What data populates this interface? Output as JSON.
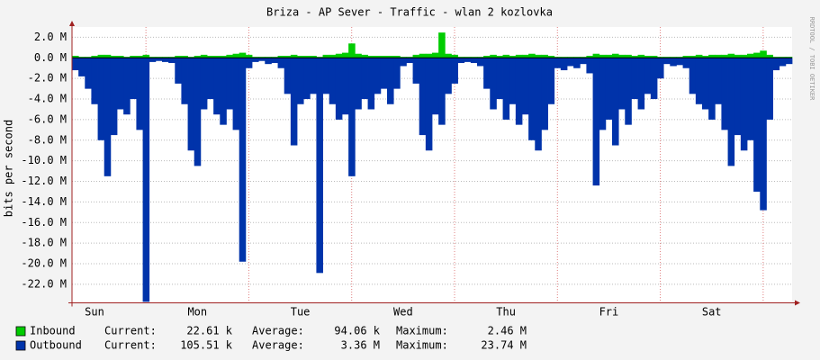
{
  "chart_data": {
    "type": "area",
    "title": "Briza - AP Sever - Traffic - wlan 2 kozlovka",
    "y_label": "bits per second",
    "watermark": "RRDTOOL / TOBI OETIKER",
    "stat_labels": [
      "Current:",
      "Average:",
      "Maximum:"
    ],
    "grid": true,
    "ylim": [
      -23.8,
      3.0
    ],
    "yticks": [
      {
        "value": 2,
        "label": "2.0 M"
      },
      {
        "value": 0,
        "label": "0.0 M"
      },
      {
        "value": -2,
        "label": "-2.0 M"
      },
      {
        "value": -4,
        "label": "-4.0 M"
      },
      {
        "value": -6,
        "label": "-6.0 M"
      },
      {
        "value": -8,
        "label": "-8.0 M"
      },
      {
        "value": -10,
        "label": "-10.0 M"
      },
      {
        "value": -12,
        "label": "-12.0 M"
      },
      {
        "value": -14,
        "label": "-14.0 M"
      },
      {
        "value": -16,
        "label": "-16.0 M"
      },
      {
        "value": -18,
        "label": "-18.0 M"
      },
      {
        "value": -20,
        "label": "-20.0 M"
      },
      {
        "value": -22,
        "label": "-22.0 M"
      }
    ],
    "categories": [
      null,
      null,
      null,
      "Sun",
      null,
      null,
      null,
      null,
      null,
      null,
      null,
      null,
      null,
      null,
      null,
      null,
      null,
      null,
      null,
      "Mon",
      null,
      null,
      null,
      null,
      null,
      null,
      null,
      null,
      null,
      null,
      null,
      null,
      null,
      null,
      null,
      "Tue",
      null,
      null,
      null,
      null,
      null,
      null,
      null,
      null,
      null,
      null,
      null,
      null,
      null,
      null,
      null,
      "Wed",
      null,
      null,
      null,
      null,
      null,
      null,
      null,
      null,
      null,
      null,
      null,
      null,
      null,
      null,
      null,
      "Thu",
      null,
      null,
      null,
      null,
      null,
      null,
      null,
      null,
      null,
      null,
      null,
      null,
      null,
      null,
      null,
      "Fri",
      null,
      null,
      null,
      null,
      null,
      null,
      null,
      null,
      null,
      null,
      null,
      null,
      null,
      null,
      null,
      "Sat",
      null,
      null,
      null,
      null,
      null,
      null,
      null,
      null,
      null,
      null,
      null,
      null
    ],
    "series": [
      {
        "name": "Inbound",
        "color": "#00cc00",
        "current": "22.61 k",
        "average": "94.06 k",
        "maximum": "2.46 M",
        "values": [
          0.2,
          0.1,
          0.1,
          0.2,
          0.3,
          0.3,
          0.2,
          0.2,
          0.1,
          0.2,
          0.2,
          0.3,
          0.1,
          0.1,
          0.1,
          0.1,
          0.2,
          0.2,
          0.1,
          0.2,
          0.3,
          0.2,
          0.2,
          0.2,
          0.3,
          0.4,
          0.5,
          0.3,
          0.1,
          0.1,
          0.1,
          0.1,
          0.2,
          0.2,
          0.3,
          0.2,
          0.2,
          0.2,
          0.1,
          0.3,
          0.3,
          0.4,
          0.5,
          1.4,
          0.4,
          0.3,
          0.2,
          0.2,
          0.2,
          0.2,
          0.2,
          0.1,
          0.1,
          0.3,
          0.4,
          0.4,
          0.5,
          2.46,
          0.4,
          0.3,
          0.1,
          0.1,
          0.1,
          0.1,
          0.2,
          0.3,
          0.2,
          0.3,
          0.2,
          0.3,
          0.3,
          0.4,
          0.3,
          0.3,
          0.2,
          0.1,
          0.1,
          0.1,
          0.1,
          0.1,
          0.2,
          0.4,
          0.3,
          0.3,
          0.4,
          0.3,
          0.3,
          0.2,
          0.3,
          0.2,
          0.2,
          0.1,
          0.1,
          0.1,
          0.1,
          0.2,
          0.2,
          0.3,
          0.2,
          0.3,
          0.3,
          0.3,
          0.4,
          0.3,
          0.3,
          0.4,
          0.5,
          0.7,
          0.3,
          0.1,
          0.1,
          0.1
        ]
      },
      {
        "name": "Outbound",
        "color": "#0033aa",
        "current": "105.51 k",
        "average": "3.36 M",
        "maximum": "23.74 M",
        "values": [
          -1.2,
          -1.8,
          -3.0,
          -4.5,
          -8.0,
          -11.5,
          -7.5,
          -5.0,
          -5.5,
          -4.0,
          -7.0,
          -23.7,
          -0.4,
          -0.3,
          -0.4,
          -0.5,
          -2.5,
          -4.5,
          -9.0,
          -10.5,
          -5.0,
          -4.0,
          -5.5,
          -6.5,
          -5.0,
          -7.0,
          -19.8,
          -1.0,
          -0.4,
          -0.3,
          -0.6,
          -0.5,
          -1.0,
          -3.5,
          -8.5,
          -4.5,
          -4.0,
          -3.5,
          -20.9,
          -3.5,
          -4.5,
          -6.0,
          -5.5,
          -11.5,
          -5.0,
          -4.0,
          -5.0,
          -3.5,
          -3.0,
          -4.5,
          -3.0,
          -0.8,
          -0.5,
          -2.5,
          -7.5,
          -9.0,
          -5.5,
          -6.5,
          -3.5,
          -2.5,
          -0.5,
          -0.4,
          -0.5,
          -0.8,
          -3.0,
          -5.0,
          -4.0,
          -6.0,
          -4.5,
          -6.5,
          -5.5,
          -8.0,
          -9.0,
          -7.0,
          -4.5,
          -1.0,
          -1.2,
          -0.8,
          -1.0,
          -0.6,
          -1.5,
          -12.4,
          -7.0,
          -6.0,
          -8.5,
          -5.0,
          -6.5,
          -4.0,
          -5.0,
          -3.5,
          -4.0,
          -2.0,
          -0.6,
          -0.8,
          -0.7,
          -1.0,
          -3.5,
          -4.5,
          -5.0,
          -6.0,
          -4.5,
          -7.0,
          -10.5,
          -7.5,
          -9.0,
          -8.0,
          -13.0,
          -14.8,
          -6.0,
          -1.2,
          -0.8,
          -0.6
        ]
      }
    ]
  }
}
